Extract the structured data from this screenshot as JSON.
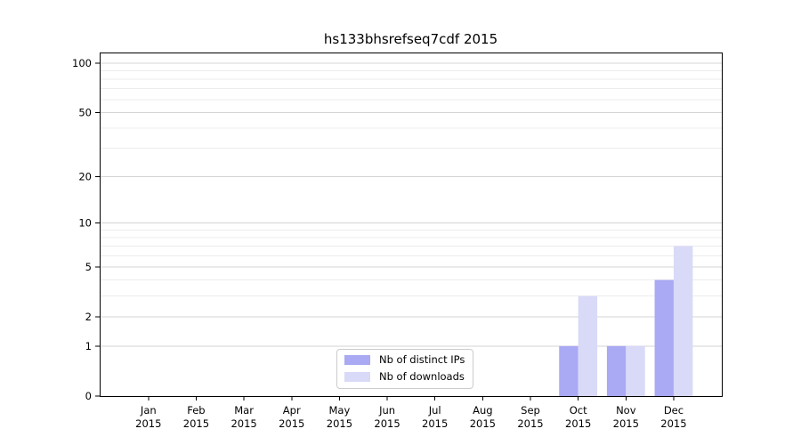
{
  "chart_data": {
    "type": "bar",
    "title": "hs133bhsrefseq7cdf 2015",
    "scale": "log1p",
    "xlabel": "",
    "ylabel": "",
    "grid": true,
    "legend_position": "lower center",
    "categories": [
      {
        "month": "Jan",
        "year": "2015"
      },
      {
        "month": "Feb",
        "year": "2015"
      },
      {
        "month": "Mar",
        "year": "2015"
      },
      {
        "month": "Apr",
        "year": "2015"
      },
      {
        "month": "May",
        "year": "2015"
      },
      {
        "month": "Jun",
        "year": "2015"
      },
      {
        "month": "Jul",
        "year": "2015"
      },
      {
        "month": "Aug",
        "year": "2015"
      },
      {
        "month": "Sep",
        "year": "2015"
      },
      {
        "month": "Oct",
        "year": "2015"
      },
      {
        "month": "Nov",
        "year": "2015"
      },
      {
        "month": "Dec",
        "year": "2015"
      }
    ],
    "series": [
      {
        "name": "Nb of distinct IPs",
        "color": "#a9a9f4",
        "values": [
          0,
          0,
          0,
          0,
          0,
          0,
          0,
          0,
          0,
          1,
          1,
          4
        ]
      },
      {
        "name": "Nb of downloads",
        "color": "#d9d9f8",
        "values": [
          0,
          0,
          0,
          0,
          0,
          0,
          0,
          0,
          0,
          3,
          1,
          7
        ]
      }
    ],
    "yticks": [
      0,
      1,
      2,
      5,
      10,
      20,
      50,
      100
    ],
    "minor_yticks": [
      3,
      4,
      6,
      7,
      8,
      9,
      30,
      40,
      60,
      70,
      80,
      90
    ],
    "ylim": [
      0,
      116
    ]
  },
  "colors": {
    "axis": "#000000",
    "tick_label": "#000000",
    "grid_major": "#d4d4d4",
    "grid_minor": "#ececec",
    "legend_border": "#cccccc",
    "background": "#ffffff"
  }
}
